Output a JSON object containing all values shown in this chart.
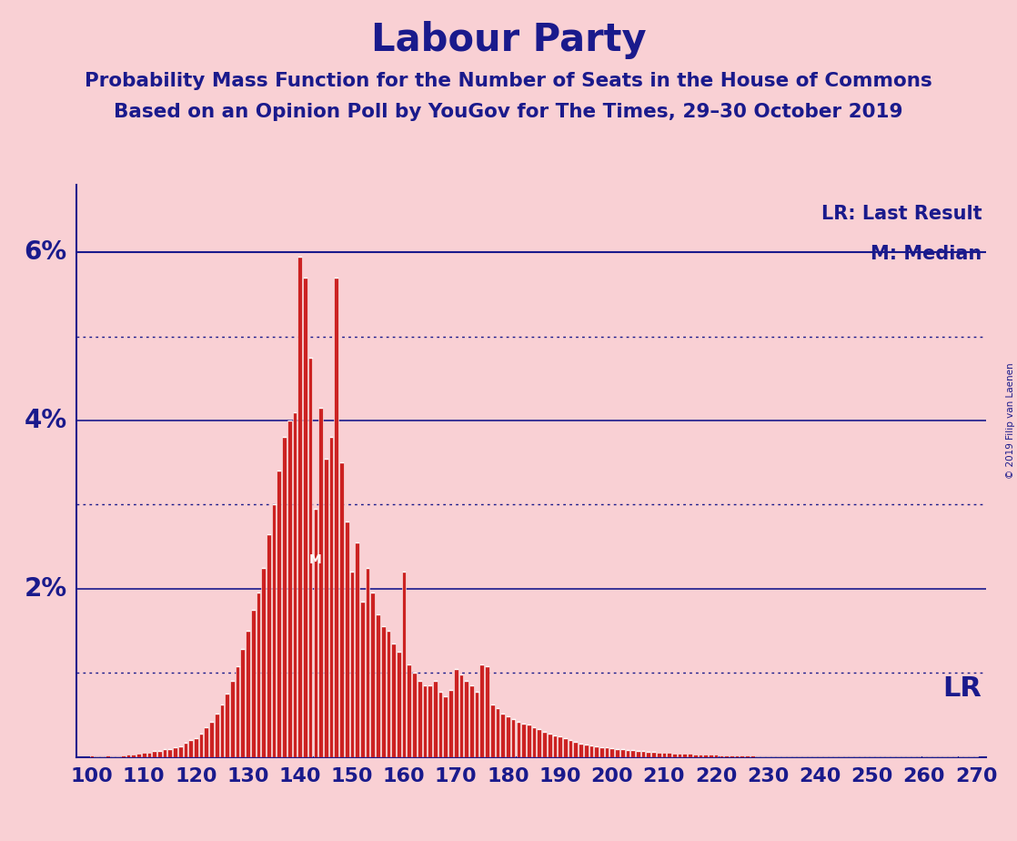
{
  "title": "Labour Party",
  "subtitle1": "Probability Mass Function for the Number of Seats in the House of Commons",
  "subtitle2": "Based on an Opinion Poll by YouGov for The Times, 29–30 October 2019",
  "copyright": "© 2019 Filip van Laenen",
  "background_color": "#f9d0d4",
  "bar_color": "#cc2222",
  "bar_edge_color": "#ffffff",
  "axis_color": "#1a1a8c",
  "title_color": "#1a1a8c",
  "text_color": "#1a1a8c",
  "x_min": 97,
  "x_max": 272,
  "y_min": 0,
  "y_max": 6.8,
  "solid_yticks": [
    2,
    4,
    6
  ],
  "dotted_yticks": [
    1,
    3,
    5
  ],
  "lr_y": 6.0,
  "median_seat": 143,
  "lr_seat": 262,
  "xlabel_seats": [
    100,
    110,
    120,
    130,
    140,
    150,
    160,
    170,
    180,
    190,
    200,
    210,
    220,
    230,
    240,
    250,
    260,
    270
  ],
  "pmf_seats": [
    100,
    101,
    102,
    103,
    104,
    105,
    106,
    107,
    108,
    109,
    110,
    111,
    112,
    113,
    114,
    115,
    116,
    117,
    118,
    119,
    120,
    121,
    122,
    123,
    124,
    125,
    126,
    127,
    128,
    129,
    130,
    131,
    132,
    133,
    134,
    135,
    136,
    137,
    138,
    139,
    140,
    141,
    142,
    143,
    144,
    145,
    146,
    147,
    148,
    149,
    150,
    151,
    152,
    153,
    154,
    155,
    156,
    157,
    158,
    159,
    160,
    161,
    162,
    163,
    164,
    165,
    166,
    167,
    168,
    169,
    170,
    171,
    172,
    173,
    174,
    175,
    176,
    177,
    178,
    179,
    180,
    181,
    182,
    183,
    184,
    185,
    186,
    187,
    188,
    189,
    190,
    191,
    192,
    193,
    194,
    195,
    196,
    197,
    198,
    199,
    200,
    201,
    202,
    203,
    204,
    205,
    206,
    207,
    208,
    209,
    210,
    211,
    212,
    213,
    214,
    215,
    216,
    217,
    218,
    219,
    220,
    221,
    222,
    223,
    224,
    225,
    226,
    227,
    228,
    229,
    230,
    231,
    232,
    233,
    234,
    235,
    236,
    237,
    238,
    239,
    240,
    241,
    242,
    243,
    244,
    245,
    246,
    247,
    248,
    249,
    250,
    251,
    252,
    253,
    254,
    255,
    256,
    257,
    258,
    259,
    260,
    261,
    262,
    263,
    264,
    265,
    266,
    267,
    268,
    269,
    270
  ],
  "pmf_values": [
    0.02,
    0.01,
    0.01,
    0.02,
    0.01,
    0.01,
    0.02,
    0.03,
    0.03,
    0.04,
    0.05,
    0.05,
    0.07,
    0.07,
    0.09,
    0.09,
    0.11,
    0.13,
    0.17,
    0.2,
    0.22,
    0.28,
    0.35,
    0.42,
    0.52,
    0.62,
    0.75,
    0.9,
    1.08,
    1.28,
    1.5,
    1.75,
    1.95,
    2.25,
    2.65,
    3.0,
    3.4,
    3.8,
    4.0,
    4.1,
    5.95,
    5.7,
    4.75,
    2.95,
    4.15,
    3.55,
    3.8,
    5.7,
    3.5,
    2.8,
    2.2,
    2.55,
    1.85,
    2.25,
    1.95,
    1.7,
    1.55,
    1.5,
    1.35,
    1.25,
    2.2,
    1.1,
    1.0,
    0.9,
    0.85,
    0.85,
    0.9,
    0.78,
    0.72,
    0.8,
    1.05,
    0.98,
    0.9,
    0.85,
    0.78,
    1.1,
    1.08,
    0.62,
    0.58,
    0.52,
    0.48,
    0.45,
    0.42,
    0.4,
    0.38,
    0.35,
    0.33,
    0.3,
    0.28,
    0.26,
    0.24,
    0.22,
    0.2,
    0.18,
    0.16,
    0.15,
    0.14,
    0.13,
    0.12,
    0.11,
    0.1,
    0.09,
    0.09,
    0.08,
    0.08,
    0.07,
    0.07,
    0.06,
    0.06,
    0.05,
    0.05,
    0.05,
    0.04,
    0.04,
    0.04,
    0.04,
    0.03,
    0.03,
    0.03,
    0.03,
    0.03,
    0.02,
    0.02,
    0.02,
    0.02,
    0.02,
    0.02,
    0.02,
    0.01,
    0.01,
    0.01,
    0.01,
    0.01,
    0.01,
    0.01,
    0.01,
    0.01,
    0.01,
    0.01,
    0.01,
    0.01,
    0.01,
    0.01,
    0.01,
    0.005,
    0.005,
    0.005,
    0.005,
    0.005,
    0.005,
    0.005,
    0.005,
    0.005,
    0.004,
    0.004,
    0.004,
    0.004,
    0.004,
    0.004,
    0.004,
    0.003,
    0.003,
    0.003,
    0.003,
    0.003,
    0.003,
    0.003,
    0.003,
    0.003,
    0.003,
    0.003
  ]
}
